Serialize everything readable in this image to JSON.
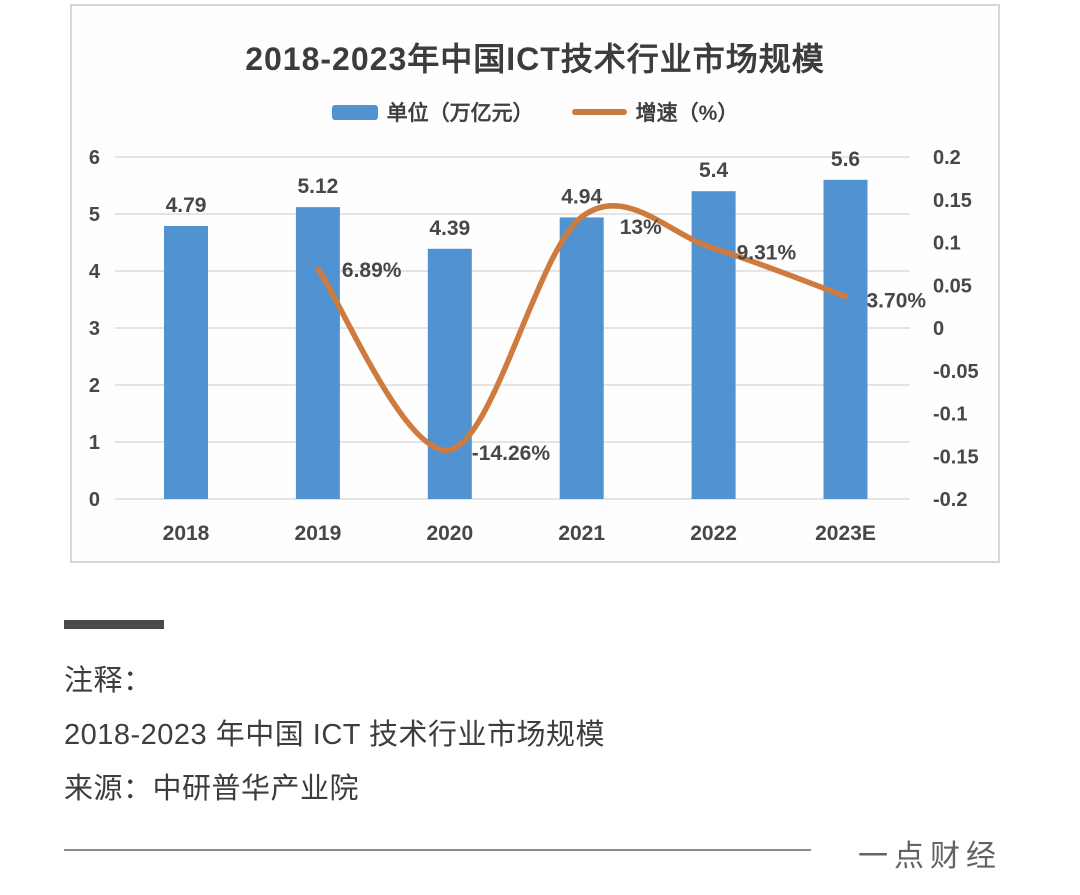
{
  "chart_data": {
    "type": "bar+line combo",
    "title": "2018-2023年中国ICT技术行业市场规模",
    "categories": [
      "2018",
      "2019",
      "2020",
      "2021",
      "2022",
      "2023E"
    ],
    "series": [
      {
        "name": "单位（万亿元）",
        "type": "bar",
        "axis": "left",
        "color": "#5093d0",
        "values": [
          4.79,
          5.12,
          4.39,
          4.94,
          5.4,
          5.6
        ],
        "labels": [
          "4.79",
          "5.12",
          "4.39",
          "4.94",
          "5.4",
          "5.6"
        ]
      },
      {
        "name": "增速（%）",
        "type": "line",
        "axis": "right",
        "color": "#cf7a3e",
        "values": [
          null,
          0.0689,
          -0.1426,
          0.13,
          0.0931,
          0.037
        ],
        "labels": [
          null,
          "6.89%",
          "-14.26%",
          "13%",
          "9.31%",
          "3.70%"
        ]
      }
    ],
    "left_axis": {
      "min": 0,
      "max": 6,
      "ticks": [
        "6",
        "5",
        "4",
        "3",
        "2",
        "1",
        "0"
      ]
    },
    "right_axis": {
      "min": -0.2,
      "max": 0.2,
      "ticks": [
        "0.2",
        "0.15",
        "0.1",
        "0.05",
        "0",
        "-0.05",
        "-0.1",
        "-0.15",
        "-0.2"
      ]
    },
    "grid": true,
    "legend_position": "top",
    "line_is_smoothed": true
  },
  "note": {
    "label": "注释：",
    "line1": "2018-2023 年中国 ICT 技术行业市场规模",
    "line2": "来源：中研普华产业院"
  },
  "footer": {
    "brand": "一点财经"
  },
  "colors": {
    "bar": "#5093d0",
    "line": "#cf7a3e",
    "grid": "#dcdcdc",
    "text": "#474747"
  }
}
